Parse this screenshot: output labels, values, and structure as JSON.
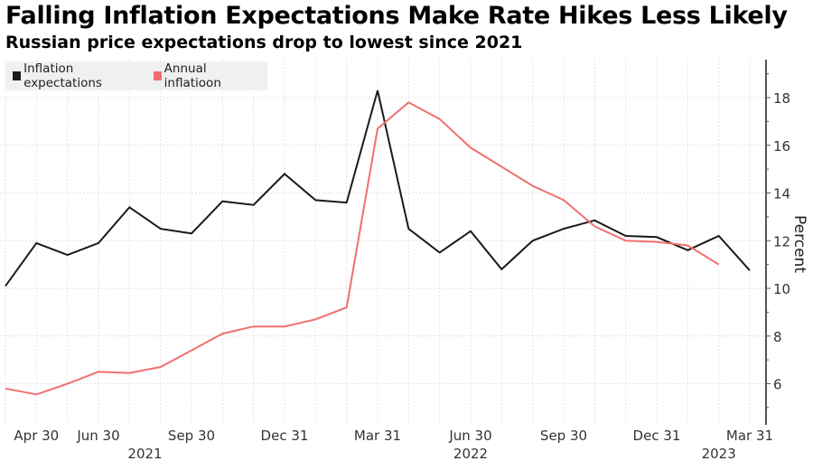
{
  "header": {
    "title": "Falling Inflation Expectations Make Rate Hikes Less Likely",
    "subtitle": "Russian price expectations drop to lowest since 2021"
  },
  "legend": {
    "items": [
      {
        "label": "Inflation expectations",
        "color": "#1a1a1a"
      },
      {
        "label": "Annual inflatioon",
        "color": "#f07070"
      }
    ],
    "placement": "top-left"
  },
  "chart_data": {
    "type": "line",
    "title": "Falling Inflation Expectations Make Rate Hikes Less Likely",
    "subtitle": "Russian price expectations drop to lowest since 2021",
    "xlabel": "",
    "ylabel": "Percent",
    "y_axis_side": "right",
    "ylim": [
      4.5,
      19.5
    ],
    "yticks": [
      6,
      8,
      10,
      12,
      14,
      16,
      18
    ],
    "grid": true,
    "x": [
      "2021-03-31",
      "2021-04-30",
      "2021-05-31",
      "2021-06-30",
      "2021-07-31",
      "2021-08-31",
      "2021-09-30",
      "2021-10-31",
      "2021-11-30",
      "2021-12-31",
      "2022-01-31",
      "2022-02-28",
      "2022-03-31",
      "2022-04-30",
      "2022-05-31",
      "2022-06-30",
      "2022-07-31",
      "2022-08-31",
      "2022-09-30",
      "2022-10-31",
      "2022-11-30",
      "2022-12-31",
      "2023-01-31",
      "2023-02-28",
      "2023-03-31"
    ],
    "xtick_labels": [
      {
        "label": "Apr 30",
        "index": 1,
        "year": ""
      },
      {
        "label": "Jun 30",
        "index": 3,
        "year": ""
      },
      {
        "label": "Sep 30",
        "index": 6,
        "year": "2021"
      },
      {
        "label": "Dec 31",
        "index": 9,
        "year": ""
      },
      {
        "label": "Mar 31",
        "index": 12,
        "year": ""
      },
      {
        "label": "Jun 30",
        "index": 15,
        "year": "2022"
      },
      {
        "label": "Sep 30",
        "index": 18,
        "year": ""
      },
      {
        "label": "Dec 31",
        "index": 21,
        "year": ""
      },
      {
        "label": "Mar 31",
        "index": 24,
        "year": "2023"
      }
    ],
    "year_labels": [
      {
        "label": "2021",
        "index": 4.5
      },
      {
        "label": "2022",
        "index": 15
      },
      {
        "label": "2023",
        "index": 23
      }
    ],
    "series": [
      {
        "name": "Inflation expectations",
        "color": "#1a1a1a",
        "values": [
          10.1,
          11.9,
          11.4,
          11.9,
          13.4,
          12.5,
          12.3,
          13.65,
          13.5,
          14.8,
          13.7,
          13.6,
          18.3,
          12.5,
          11.5,
          12.4,
          10.8,
          12.0,
          12.5,
          12.85,
          12.2,
          12.15,
          11.6,
          12.2,
          10.75
        ]
      },
      {
        "name": "Annual inflatioon",
        "color": "#f07070",
        "values": [
          5.8,
          5.55,
          6.0,
          6.5,
          6.45,
          6.7,
          7.4,
          8.1,
          8.4,
          8.4,
          8.7,
          9.2,
          16.7,
          17.8,
          17.1,
          15.9,
          15.1,
          14.3,
          13.7,
          12.6,
          12.0,
          11.95,
          11.8,
          11.0,
          null
        ]
      }
    ]
  }
}
